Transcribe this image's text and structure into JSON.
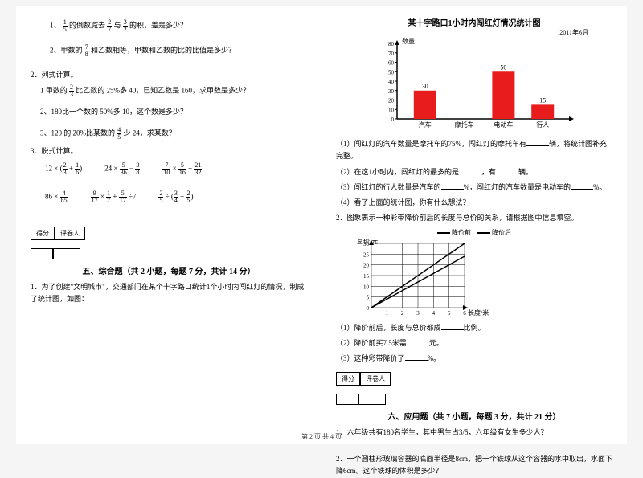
{
  "left": {
    "q1": {
      "pre": "1、",
      "a": "1",
      "b": "5",
      "mid": "的倒数减去",
      "c": "2",
      "d": "7",
      "mid2": "与",
      "e": "3",
      "f": "2",
      "tail": "的积，差是多少？"
    },
    "q2": {
      "pre": "2、甲数的",
      "a": "7",
      "b": "8",
      "tail": "和乙数相等，甲数和乙数的比的比值是多少？"
    },
    "s2": {
      "title": "2．列式计算。"
    },
    "s2q1": {
      "pre": "1 甲数的",
      "a": "2",
      "b": "3",
      "tail": "比乙数的 25%多 40，已知乙数是 160，求甲数是多少？"
    },
    "s2q2": "2、180比一个数的 50%多 10，这个数是多少？",
    "s2q3": {
      "pre": "3、120 的 20%比某数的",
      "a": "4",
      "b": "5",
      "tail": "少 24，求某数？"
    },
    "s3": "3．脱式计算。",
    "row1": {
      "e1": {
        "a": "12",
        "op": "×",
        "p1n": "2",
        "p1d": "3",
        "plus": "+",
        "p2n": "1",
        "p2d": "6"
      },
      "e2": {
        "a": "24",
        "op": "×",
        "p1n": "5",
        "p1d": "36",
        "minus": "−",
        "p2n": "3",
        "p2d": "8"
      },
      "e3": {
        "p1n": "7",
        "p1d": "10",
        "op": "×",
        "p2n": "5",
        "p2d": "16",
        "div": "÷",
        "p3n": "21",
        "p3d": "32"
      }
    },
    "row2": {
      "e1": {
        "a": "86",
        "op": "×",
        "p1n": "4",
        "p1d": "85"
      },
      "e2": {
        "p1n": "9",
        "p1d": "17",
        "op": "×",
        "p2n": "1",
        "p2d": "7",
        "plus": "+",
        "p3n": "5",
        "p3d": "17",
        "div": "÷7"
      },
      "e3": {
        "p1n": "2",
        "p1d": "5",
        "div": "÷",
        "p2n": "3",
        "p2d": "4",
        "plus": "+",
        "p3n": "2",
        "p3d": "5"
      }
    },
    "score1": "得分",
    "score2": "评卷人",
    "sec5": "五、综合题（共 2 小题，每题 7 分，共计 14 分）",
    "p1": "1．为了创建\"文明城市\"，交通部门在某个十字路口统计1个小时内闯红灯的情况，制成了统计图，如图：",
    "footer": "第 2 页 共 4 页"
  },
  "right": {
    "chartTitle": "某十字路口1小时内闯红灯情况统计图",
    "chartDate": "2011年6月",
    "yLabel": "数量",
    "yticks": [
      "80",
      "70",
      "60",
      "50",
      "40",
      "30",
      "20",
      "10",
      "0"
    ],
    "bars": [
      {
        "label": "汽车",
        "value": 30,
        "show": "30",
        "color": "#e81c1c"
      },
      {
        "label": "摩托车",
        "value": 0,
        "show": "",
        "color": "#e81c1c"
      },
      {
        "label": "电动车",
        "value": 50,
        "show": "50",
        "color": "#e81c1c"
      },
      {
        "label": "行人",
        "value": 15,
        "show": "15",
        "color": "#e81c1c"
      }
    ],
    "q1": "（1）闯红灯的汽车数量是摩托车的75%，闯红灯的摩托车有",
    "q1b": "辆，将统计图补充完整。",
    "q2": "（2）在这1小时内，闯红灯的最多的是",
    "q2b": "，有",
    "q2c": "辆。",
    "q3": "（3）闯红灯的行人数量是汽车的",
    "q3b": "%，闯红灯的汽车数量是电动车的",
    "q3c": "%。",
    "q4": "（4）看了上面的统计图，你有什么想法？",
    "p2": "2．图象表示一种彩带降价前后的长度与总价的关系，请根据图中信息填空。",
    "legend1": "降价前",
    "legend2": "降价后",
    "legendColor1": "#000000",
    "legendColor2": "#000000",
    "yLabel2": "总价/元",
    "xLabel2": "长度/米",
    "yticks2": [
      "30",
      "25",
      "20",
      "15",
      "10",
      "5",
      "0"
    ],
    "xticks2": [
      "1",
      "2",
      "3",
      "4",
      "5",
      "6"
    ],
    "grid_color": "#000",
    "q2_1": "（1）降价前后，长度与总价都成",
    "q2_1b": "比例。",
    "q2_2": "（2）降价前买7.5米需",
    "q2_2b": "元。",
    "q2_3": "（3）这种彩带降价了",
    "q2_3b": "%。",
    "score1": "得分",
    "score2": "评卷人",
    "sec6": "六、应用题（共 7 小题，每题 3 分，共计 21 分）",
    "app1": "1．六年级共有180名学生，其中男生占3/5，六年级有女生多少人？",
    "app2": "2．一个圆柱形玻璃容器的底面半径是8cm，把一个铁球从这个容器的水中取出，水面下降6cm。这个铁球的体积是多少？"
  }
}
